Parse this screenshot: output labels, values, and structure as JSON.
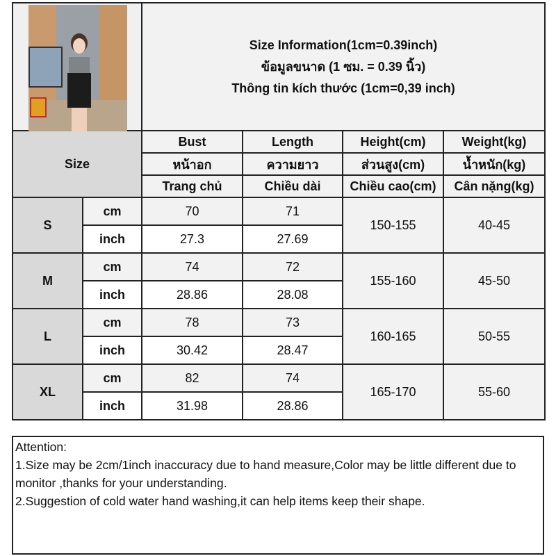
{
  "title": {
    "line1": "Size Information(1cm=0.39inch)",
    "line2": "ข้อมูลขนาด (1 ซม. = 0.39 นิ้ว)",
    "line3": "Thông tin kích thước (1cm=0,39 inch)"
  },
  "header": {
    "size_label": "Size",
    "columns": [
      {
        "en": "Bust",
        "th": "หน้าอก",
        "vi": "Trang chủ"
      },
      {
        "en": "Length",
        "th": "ความยาว",
        "vi": "Chiều dài"
      },
      {
        "en": "Height(cm)",
        "th": "ส่วนสูง(cm)",
        "vi": "Chiều cao(cm)"
      },
      {
        "en": "Weight(kg)",
        "th": "น้ำหนัก(kg)",
        "vi": "Cân nặng(kg)"
      }
    ]
  },
  "units": {
    "cm": "cm",
    "inch": "inch"
  },
  "sizes": [
    {
      "size": "S",
      "bust_cm": "70",
      "length_cm": "71",
      "bust_inch": "27.3",
      "length_inch": "27.69",
      "height": "150-155",
      "weight": "40-45"
    },
    {
      "size": "M",
      "bust_cm": "74",
      "length_cm": "72",
      "bust_inch": "28.86",
      "length_inch": "28.08",
      "height": "155-160",
      "weight": "45-50"
    },
    {
      "size": "L",
      "bust_cm": "78",
      "length_cm": "73",
      "bust_inch": "30.42",
      "length_inch": "28.47",
      "height": "160-165",
      "weight": "50-55"
    },
    {
      "size": "XL",
      "bust_cm": "82",
      "length_cm": "74",
      "bust_inch": "31.98",
      "length_inch": "28.86",
      "height": "165-170",
      "weight": "55-60"
    }
  ],
  "attention": {
    "heading": "Attention:",
    "notes": [
      "1.Size may be 2cm/1inch inaccuracy due to hand measure,Color may be little different due to monitor ,thanks for your understanding.",
      "2.Suggestion of cold water hand washing,it can help items keep their shape."
    ]
  }
}
